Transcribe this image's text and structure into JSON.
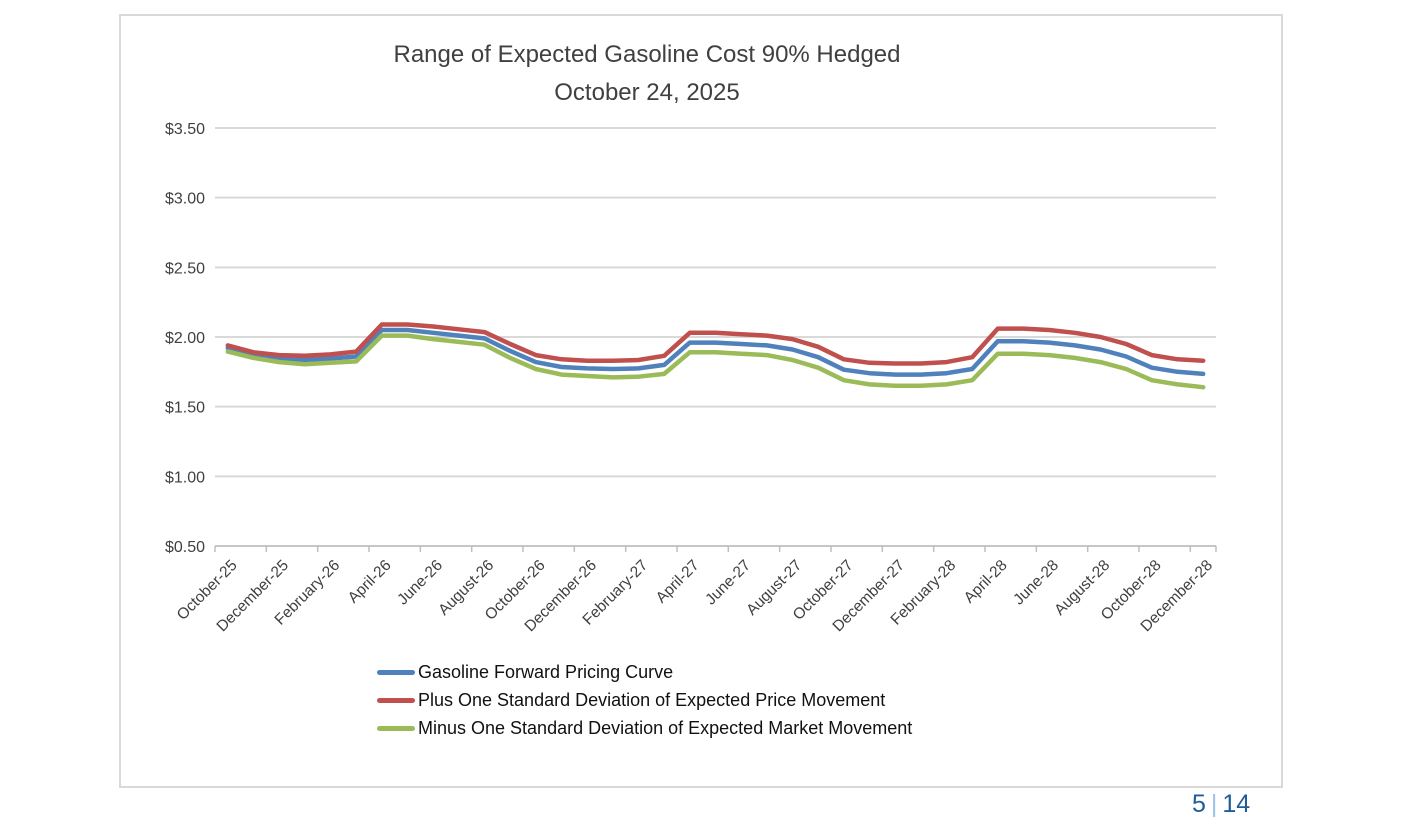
{
  "page": {
    "footer": {
      "current": "5",
      "separator": "|",
      "total": "14"
    }
  },
  "chart": {
    "title_line1": "Range of Expected Gasoline Cost 90% Hedged",
    "title_line2": "October 24, 2025"
  },
  "chart_data": {
    "type": "line",
    "title": "Range of Expected Gasoline Cost 90% Hedged",
    "subtitle": "October 24, 2025",
    "grid": true,
    "legend_position": "bottom-left",
    "ylim": [
      0.5,
      3.5
    ],
    "y_tick_values": [
      3.5,
      3.0,
      2.5,
      2.0,
      1.5,
      1.0,
      0.5
    ],
    "y_ticks": [
      "$3.50",
      "$3.00",
      "$2.50",
      "$2.00",
      "$1.50",
      "$1.00",
      "$0.50"
    ],
    "x_label_interval": 2,
    "visible_x_labels": [
      "October-25",
      "December-25",
      "February-26",
      "April-26",
      "June-26",
      "August-26",
      "October-26",
      "December-26",
      "February-27",
      "April-27",
      "June-27",
      "August-27",
      "October-27",
      "December-27",
      "February-28",
      "April-28",
      "June-28",
      "August-28",
      "October-28",
      "December-28"
    ],
    "categories": [
      "October-25",
      "November-25",
      "December-25",
      "January-26",
      "February-26",
      "March-26",
      "April-26",
      "May-26",
      "June-26",
      "July-26",
      "August-26",
      "September-26",
      "October-26",
      "November-26",
      "December-26",
      "January-27",
      "February-27",
      "March-27",
      "April-27",
      "May-27",
      "June-27",
      "July-27",
      "August-27",
      "September-27",
      "October-27",
      "November-27",
      "December-27",
      "January-28",
      "February-28",
      "March-28",
      "April-28",
      "May-28",
      "June-28",
      "July-28",
      "August-28",
      "September-28",
      "October-28",
      "November-28",
      "December-28"
    ],
    "series": [
      {
        "name": "Gasoline Forward Pricing Curve",
        "color": "#4f81bd",
        "values": [
          1.92,
          1.87,
          1.845,
          1.835,
          1.845,
          1.86,
          2.05,
          2.05,
          2.03,
          2.01,
          1.99,
          1.9,
          1.82,
          1.785,
          1.775,
          1.77,
          1.775,
          1.8,
          1.96,
          1.96,
          1.95,
          1.94,
          1.91,
          1.855,
          1.765,
          1.74,
          1.73,
          1.73,
          1.74,
          1.77,
          1.97,
          1.97,
          1.96,
          1.94,
          1.91,
          1.86,
          1.78,
          1.75,
          1.735
        ]
      },
      {
        "name": "Plus One Standard Deviation of Expected Price Movement",
        "color": "#c0504d",
        "values": [
          1.94,
          1.89,
          1.87,
          1.865,
          1.875,
          1.895,
          2.09,
          2.09,
          2.075,
          2.055,
          2.035,
          1.95,
          1.87,
          1.84,
          1.83,
          1.83,
          1.835,
          1.865,
          2.03,
          2.03,
          2.02,
          2.01,
          1.985,
          1.93,
          1.84,
          1.815,
          1.81,
          1.81,
          1.82,
          1.855,
          2.06,
          2.06,
          2.05,
          2.03,
          2.0,
          1.95,
          1.87,
          1.84,
          1.83
        ]
      },
      {
        "name": "Minus One Standard Deviation of Expected Market Movement",
        "color": "#9bbb59",
        "values": [
          1.895,
          1.85,
          1.82,
          1.805,
          1.815,
          1.825,
          2.01,
          2.01,
          1.985,
          1.965,
          1.945,
          1.85,
          1.77,
          1.73,
          1.72,
          1.71,
          1.715,
          1.735,
          1.89,
          1.89,
          1.88,
          1.87,
          1.835,
          1.78,
          1.69,
          1.66,
          1.65,
          1.65,
          1.66,
          1.69,
          1.88,
          1.88,
          1.87,
          1.85,
          1.82,
          1.77,
          1.69,
          1.66,
          1.64
        ]
      }
    ],
    "style": {
      "gridline_color": "#d9d9d9",
      "axis_color": "#bfbfbf",
      "label_color": "#404040",
      "footer_dark_blue": "#1f5c99",
      "footer_light_blue": "#9dc3e6"
    }
  }
}
